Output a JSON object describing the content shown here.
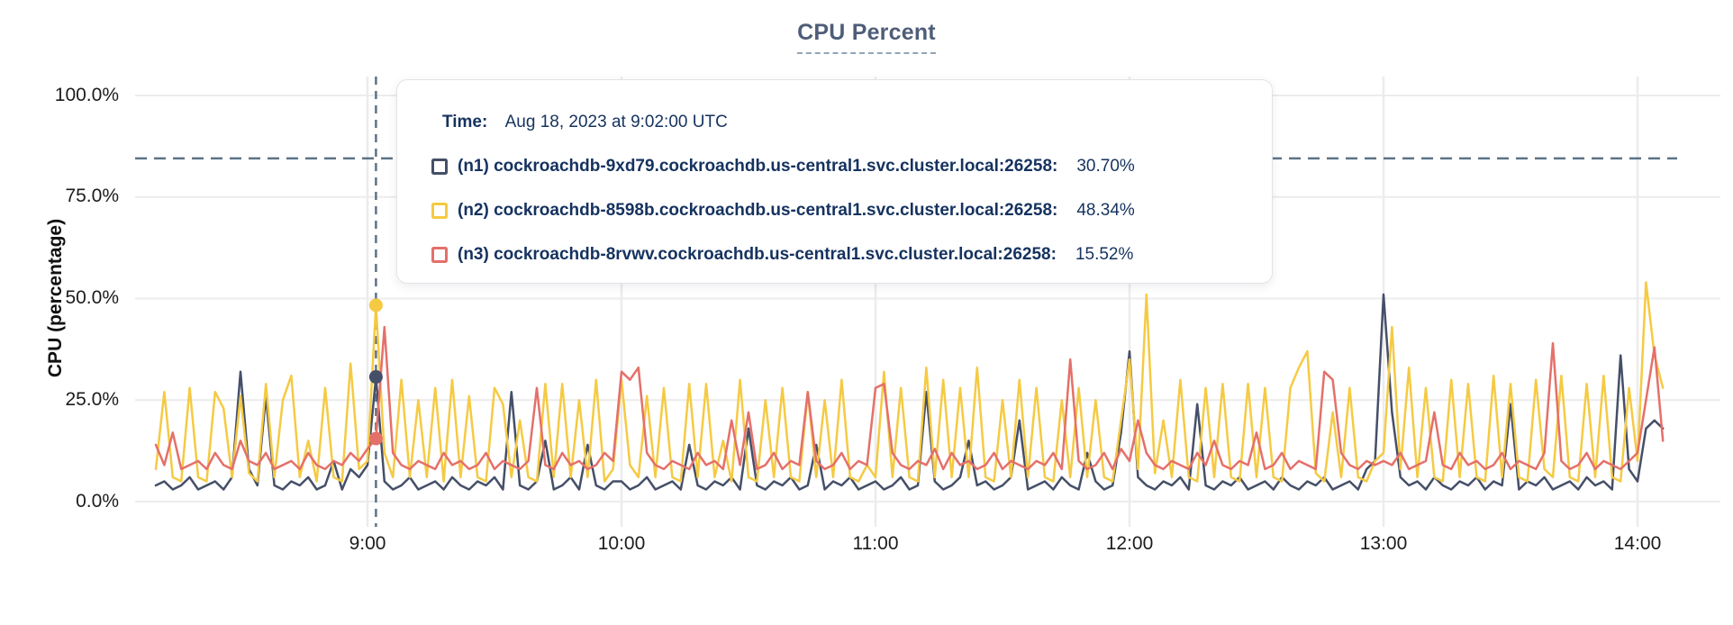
{
  "title": "CPU Percent",
  "y_axis": {
    "label": "CPU (percentage)",
    "ticks": [
      "100.0%",
      "75.0%",
      "50.0%",
      "25.0%",
      "0.0%"
    ]
  },
  "x_axis": {
    "ticks": [
      "9:00",
      "10:00",
      "11:00",
      "12:00",
      "13:00",
      "14:00"
    ]
  },
  "tooltip": {
    "time_label": "Time:",
    "time_value": "Aug 18, 2023 at 9:02:00 UTC",
    "rows": [
      {
        "label": "(n1) cockroachdb-9xd79.cockroachdb.us-central1.svc.cluster.local:26258:",
        "value": "30.70%",
        "color": "#454f68"
      },
      {
        "label": "(n2) cockroachdb-8598b.cockroachdb.us-central1.svc.cluster.local:26258:",
        "value": "48.34%",
        "color": "#f5ca43"
      },
      {
        "label": "(n3) cockroachdb-8rvwv.cockroachdb.us-central1.svc.cluster.local:26258:",
        "value": "15.52%",
        "color": "#e4706a"
      }
    ]
  },
  "chart_data": {
    "type": "line",
    "title": "CPU Percent",
    "xlabel": "",
    "ylabel": "CPU (percentage)",
    "ylim": [
      0,
      100
    ],
    "grid": true,
    "x_unit": "hours (UTC, Aug 18 2023)",
    "x_start_hour": 8.1667,
    "x_step_minutes": 2,
    "x_tick_hours": [
      9,
      10,
      11,
      12,
      13,
      14
    ],
    "x_tick_labels": [
      "9:00",
      "10:00",
      "11:00",
      "12:00",
      "13:00",
      "14:00"
    ],
    "threshold_percent": 84.5,
    "hover_time_hour": 9.0333,
    "hover_time_label": "Aug 18, 2023 at 9:02:00 UTC",
    "series": [
      {
        "id": "n1",
        "name": "(n1) cockroachdb-9xd79.cockroachdb.us-central1.svc.cluster.local:26258",
        "color": "#454f68",
        "hover_value": 30.7,
        "values": [
          4,
          5,
          3,
          4,
          6,
          3,
          4,
          5,
          3,
          6,
          32,
          8,
          4,
          26,
          4,
          3,
          5,
          4,
          6,
          3,
          4,
          10,
          3,
          8,
          6,
          9,
          30.7,
          5,
          3,
          4,
          6,
          3,
          4,
          5,
          3,
          6,
          4,
          3,
          5,
          4,
          6,
          3,
          27,
          4,
          3,
          5,
          15,
          3,
          4,
          6,
          3,
          14,
          4,
          3,
          5,
          5,
          3,
          4,
          6,
          3,
          4,
          5,
          3,
          14,
          4,
          3,
          5,
          4,
          6,
          3,
          18,
          4,
          3,
          5,
          4,
          6,
          3,
          4,
          14,
          3,
          5,
          4,
          6,
          3,
          4,
          5,
          3,
          4,
          6,
          3,
          4,
          27,
          5,
          3,
          4,
          6,
          15,
          4,
          5,
          3,
          4,
          6,
          20,
          3,
          4,
          5,
          3,
          6,
          4,
          3,
          12,
          5,
          3,
          4,
          17,
          37,
          6,
          4,
          3,
          5,
          4,
          6,
          3,
          24,
          4,
          3,
          5,
          4,
          6,
          3,
          4,
          5,
          3,
          6,
          4,
          3,
          5,
          4,
          6,
          3,
          4,
          5,
          3,
          8,
          10,
          51,
          22,
          6,
          4,
          5,
          3,
          6,
          4,
          3,
          5,
          4,
          6,
          3,
          5,
          4,
          24,
          3,
          5,
          4,
          6,
          3,
          4,
          5,
          3,
          6,
          4,
          5,
          3,
          36,
          8,
          5,
          18,
          20,
          18
        ]
      },
      {
        "id": "n2",
        "name": "(n2) cockroachdb-8598b.cockroachdb.us-central1.svc.cluster.local:26258",
        "color": "#f5ca43",
        "hover_value": 48.34,
        "values": [
          8,
          27,
          6,
          5,
          28,
          6,
          5,
          27,
          23,
          6,
          26,
          7,
          5,
          29,
          6,
          25,
          31,
          6,
          15,
          5,
          28,
          6,
          5,
          34,
          8,
          10,
          48.34,
          12,
          6,
          30,
          6,
          25,
          6,
          28,
          5,
          30,
          6,
          26,
          6,
          5,
          28,
          24,
          6,
          20,
          6,
          5,
          29,
          6,
          29,
          6,
          25,
          6,
          30,
          5,
          8,
          30,
          9,
          6,
          26,
          6,
          28,
          6,
          5,
          29,
          6,
          29,
          6,
          15,
          5,
          30,
          6,
          5,
          25,
          6,
          28,
          6,
          5,
          27,
          6,
          25,
          6,
          30,
          6,
          5,
          9,
          6,
          32,
          6,
          28,
          6,
          5,
          33,
          6,
          30,
          6,
          28,
          6,
          33,
          6,
          5,
          25,
          6,
          30,
          6,
          28,
          6,
          5,
          25,
          6,
          28,
          6,
          25,
          6,
          5,
          20,
          35,
          8,
          51,
          7,
          20,
          6,
          30,
          6,
          5,
          28,
          6,
          29,
          6,
          5,
          29,
          6,
          28,
          6,
          5,
          28,
          33,
          37,
          7,
          5,
          22,
          6,
          28,
          6,
          5,
          10,
          12,
          43,
          8,
          33,
          6,
          28,
          6,
          5,
          30,
          6,
          29,
          6,
          5,
          31,
          6,
          29,
          6,
          5,
          30,
          8,
          6,
          31,
          6,
          5,
          29,
          6,
          31,
          6,
          5,
          28,
          10,
          54,
          36,
          28
        ]
      },
      {
        "id": "n3",
        "name": "(n3) cockroachdb-8rvwv.cockroachdb.us-central1.svc.cluster.local:26258",
        "color": "#e4706a",
        "hover_value": 15.52,
        "values": [
          14,
          9,
          17,
          8,
          9,
          10,
          8,
          12,
          9,
          8,
          15,
          10,
          9,
          12,
          8,
          9,
          10,
          8,
          12,
          9,
          8,
          10,
          9,
          12,
          10,
          13,
          15.52,
          43,
          12,
          9,
          8,
          10,
          9,
          8,
          12,
          9,
          10,
          8,
          9,
          12,
          8,
          10,
          9,
          8,
          10,
          28,
          9,
          8,
          12,
          9,
          10,
          8,
          9,
          12,
          10,
          32,
          30,
          33,
          12,
          9,
          8,
          10,
          9,
          8,
          12,
          9,
          10,
          8,
          20,
          9,
          22,
          8,
          9,
          12,
          8,
          10,
          9,
          27,
          10,
          8,
          9,
          12,
          8,
          10,
          9,
          28,
          29,
          12,
          9,
          8,
          10,
          9,
          13,
          8,
          12,
          9,
          10,
          8,
          9,
          12,
          8,
          10,
          9,
          8,
          10,
          9,
          12,
          8,
          35,
          10,
          8,
          9,
          12,
          8,
          13,
          10,
          20,
          12,
          9,
          8,
          10,
          9,
          8,
          12,
          9,
          15,
          9,
          8,
          10,
          9,
          17,
          8,
          9,
          12,
          8,
          10,
          9,
          8,
          32,
          30,
          12,
          9,
          8,
          10,
          9,
          10,
          9,
          12,
          8,
          9,
          10,
          22,
          9,
          8,
          12,
          9,
          10,
          8,
          9,
          12,
          8,
          10,
          9,
          8,
          12,
          39,
          10,
          8,
          9,
          12,
          8,
          10,
          9,
          8,
          10,
          12,
          25,
          38,
          15
        ]
      }
    ]
  }
}
